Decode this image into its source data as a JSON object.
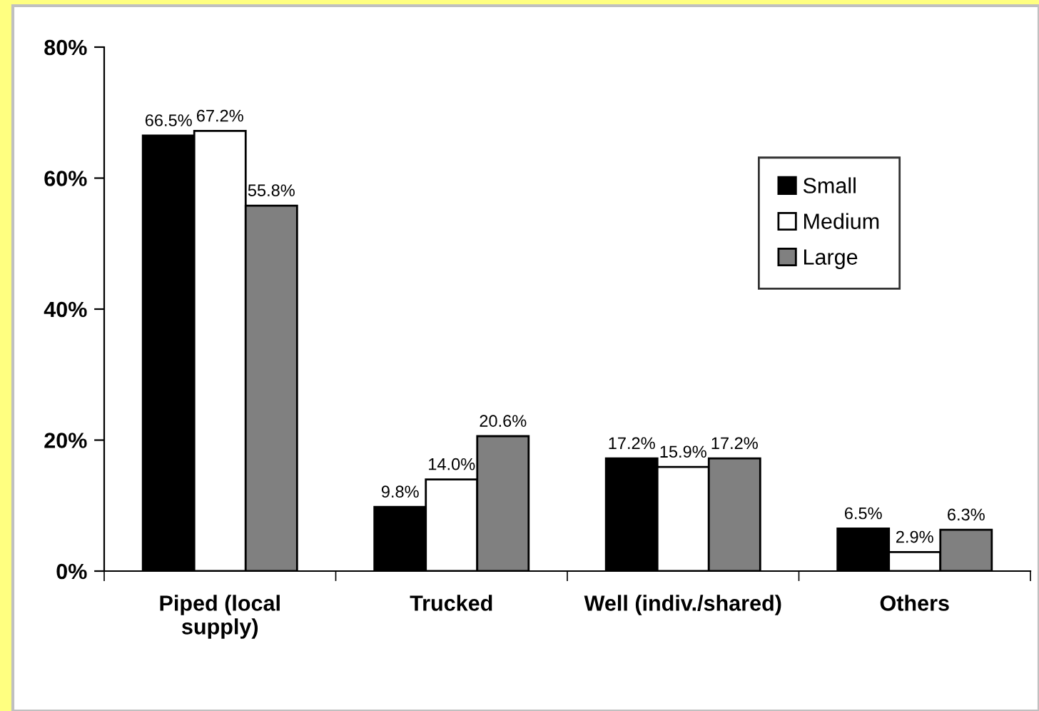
{
  "chart_data": {
    "type": "bar",
    "categories": [
      "Piped (local\nsupply)",
      "Trucked",
      "Well (indiv./shared)",
      "Others"
    ],
    "series": [
      {
        "name": "Small",
        "color": "#000000",
        "values": [
          66.5,
          9.8,
          17.2,
          6.5
        ],
        "value_labels": [
          "66.5%",
          "9.8%",
          "17.2%",
          "6.5%"
        ]
      },
      {
        "name": "Medium",
        "color": "#ffffff",
        "values": [
          67.2,
          14.0,
          15.9,
          2.9
        ],
        "value_labels": [
          "67.2%",
          "14.0%",
          "15.9%",
          "2.9%"
        ]
      },
      {
        "name": "Large",
        "color": "#808080",
        "values": [
          55.8,
          20.6,
          17.2,
          6.3
        ],
        "value_labels": [
          "55.8%",
          "20.6%",
          "17.2%",
          "6.3%"
        ]
      }
    ],
    "ylim": [
      0,
      80
    ],
    "yticks": [
      {
        "value": 0,
        "label": "0%"
      },
      {
        "value": 20,
        "label": "20%"
      },
      {
        "value": 40,
        "label": "40%"
      },
      {
        "value": 60,
        "label": "60%"
      },
      {
        "value": 80,
        "label": "80%"
      }
    ],
    "grid": false,
    "legend": "top right"
  }
}
